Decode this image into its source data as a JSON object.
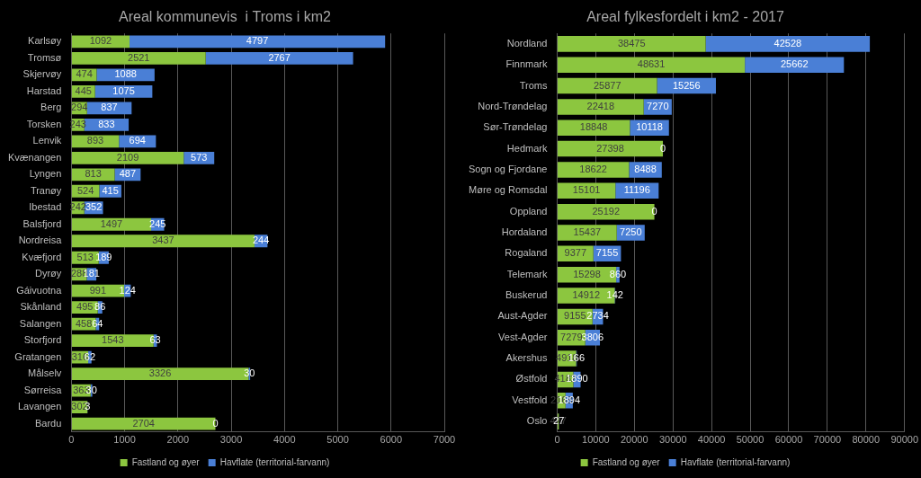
{
  "chart_data": [
    {
      "type": "bar",
      "title": "Areal kommunevis  i Troms i km2",
      "orientation": "horizontal",
      "stacked": true,
      "grid": true,
      "legend": "bottom",
      "data_labels": true,
      "categories": [
        "Karlsøy",
        "Tromsø",
        "Skjervøy",
        "Harstad",
        "Berg",
        "Torsken",
        "Lenvik",
        "Kvænangen",
        "Lyngen",
        "Tranøy",
        "Ibestad",
        "Balsfjord",
        "Nordreisa",
        "Kvæfjord",
        "Dyrøy",
        "Gáivuotna",
        "Skånland",
        "Salangen",
        "Storfjord",
        "Gratangen",
        "Målselv",
        "Sørreisa",
        "Lavangen",
        "Bardu"
      ],
      "series": [
        {
          "name": "Fastland og øyer",
          "color": "#8cc63f",
          "values": [
            1092,
            2521,
            474,
            445,
            294,
            243,
            893,
            2109,
            813,
            524,
            242,
            1497,
            3437,
            513,
            288,
            991,
            495,
            458,
            1543,
            316,
            3326,
            363,
            302,
            2704
          ]
        },
        {
          "name": "Havflate (territorial-farvann)",
          "color": "#4a7fd6",
          "values": [
            4797,
            2767,
            1088,
            1075,
            837,
            833,
            694,
            573,
            487,
            415,
            352,
            245,
            244,
            189,
            181,
            124,
            86,
            64,
            63,
            62,
            30,
            30,
            3,
            0
          ]
        }
      ],
      "xlim": [
        0,
        7000
      ],
      "xticks": [
        0,
        1000,
        2000,
        3000,
        4000,
        5000,
        6000,
        7000
      ]
    },
    {
      "type": "bar",
      "title": "Areal fylkesfordelt i km2 - 2017",
      "orientation": "horizontal",
      "stacked": true,
      "grid": true,
      "legend": "bottom",
      "data_labels": true,
      "categories": [
        "Nordland",
        "Finnmark",
        "Troms",
        "Nord-Trøndelag",
        "Sør-Trøndelag",
        "Hedmark",
        "Sogn og Fjordane",
        "Møre og Romsdal",
        "Oppland",
        "Hordaland",
        "Rogaland",
        "Telemark",
        "Buskerud",
        "Aust-Agder",
        "Vest-Agder",
        "Akershus",
        "Østfold",
        "Vestfold",
        "Oslo"
      ],
      "series": [
        {
          "name": "Fastland og øyer",
          "color": "#8cc63f",
          "values": [
            38475,
            48631,
            25877,
            22418,
            18848,
            27398,
            18622,
            15101,
            25192,
            15437,
            9377,
            15298,
            14912,
            9155,
            7279,
            4918,
            4182,
            2168,
            427
          ]
        },
        {
          "name": "Havflate (territorial-farvann)",
          "color": "#4a7fd6",
          "values": [
            42528,
            25662,
            15256,
            7270,
            10118,
            0,
            8488,
            11196,
            0,
            7250,
            7155,
            860,
            142,
            2734,
            3806,
            166,
            1890,
            1894,
            27
          ]
        }
      ],
      "xlim": [
        0,
        90000
      ],
      "xticks": [
        0,
        10000,
        20000,
        30000,
        40000,
        50000,
        60000,
        70000,
        80000,
        90000
      ]
    }
  ]
}
